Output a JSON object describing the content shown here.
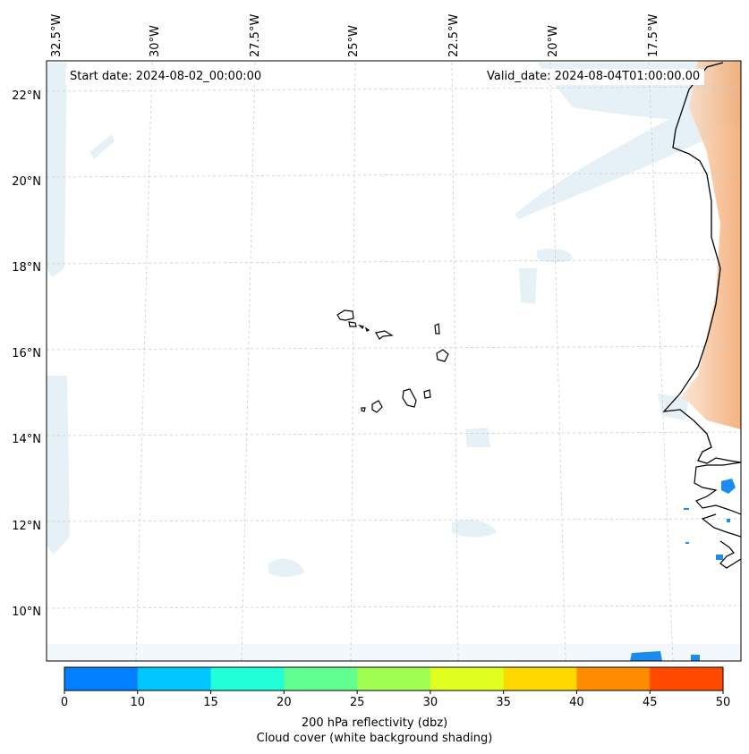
{
  "map": {
    "start_label": "Start date: 2024-08-02_00:00:00",
    "valid_label": "Valid_date: 2024-08-04T01:00:00.00",
    "lon_ticks": [
      "32.5°W",
      "30°W",
      "27.5°W",
      "25°W",
      "22.5°W",
      "20°W",
      "17.5°W"
    ],
    "lat_ticks": [
      "22°N",
      "20°N",
      "18°N",
      "16°N",
      "14°N",
      "12°N",
      "10°N"
    ],
    "coastline_color": "#000000",
    "cloud_color": "#d6eaf2",
    "land_warm_color": "#f4a460"
  },
  "colorbar": {
    "ticks": [
      "0",
      "10",
      "15",
      "20",
      "25",
      "30",
      "35",
      "40",
      "45",
      "50"
    ],
    "colors": [
      "#0080ff",
      "#00c8ff",
      "#20ffd8",
      "#60ff90",
      "#a0ff50",
      "#e0ff20",
      "#ffd800",
      "#ff8c00",
      "#ff4a00"
    ],
    "title_line1": "200 hPa reflectivity (dbz)",
    "title_line2": "Cloud cover (white background shading)"
  }
}
